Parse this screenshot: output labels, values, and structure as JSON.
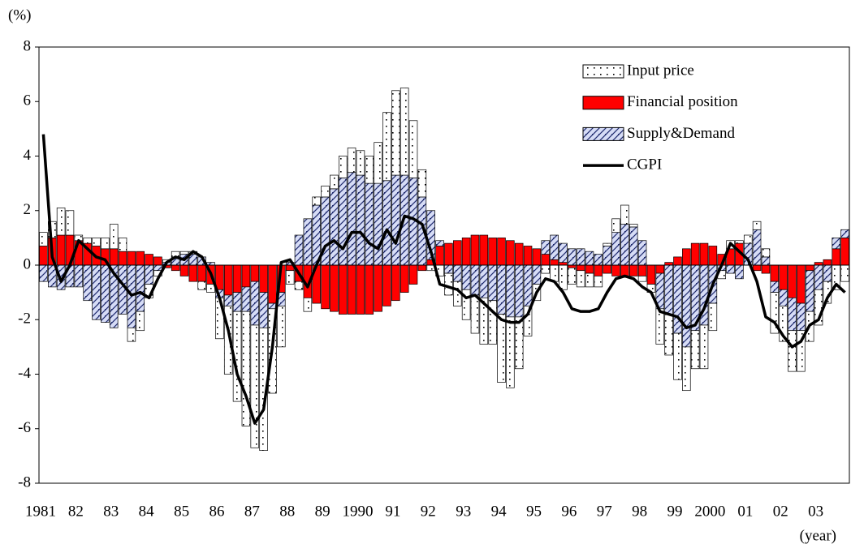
{
  "chart_data": {
    "type": "bar",
    "ylabel": "(%)",
    "xlabel": "(year)",
    "ylim": [
      -8,
      8
    ],
    "yticks": [
      -8,
      -6,
      -4,
      -2,
      0,
      2,
      4,
      6,
      8
    ],
    "legend": "upper right",
    "categories": [
      "1981",
      null,
      null,
      null,
      "82",
      null,
      null,
      null,
      "83",
      null,
      null,
      null,
      "84",
      null,
      null,
      null,
      "85",
      null,
      null,
      null,
      "86",
      null,
      null,
      null,
      "87",
      null,
      null,
      null,
      "88",
      null,
      null,
      null,
      "89",
      null,
      null,
      null,
      "1990",
      null,
      null,
      null,
      "91",
      null,
      null,
      null,
      "92",
      null,
      null,
      null,
      "93",
      null,
      null,
      null,
      "94",
      null,
      null,
      null,
      "95",
      null,
      null,
      null,
      "96",
      null,
      null,
      null,
      "97",
      null,
      null,
      null,
      "98",
      null,
      null,
      null,
      "99",
      null,
      null,
      null,
      "2000",
      null,
      null,
      null,
      "01",
      null,
      null,
      null,
      "02",
      null,
      null,
      null,
      "03",
      null,
      null,
      null
    ],
    "series": [
      {
        "name": "Input price",
        "color": "#ffffff",
        "type": "bar",
        "values": [
          0.5,
          0.6,
          1.0,
          0.9,
          0.2,
          0.2,
          0.3,
          0.4,
          0.9,
          0.5,
          -0.5,
          -0.7,
          -0.5,
          -0.2,
          0.1,
          0.2,
          0.1,
          0.1,
          -0.3,
          -0.3,
          -1.5,
          -2.5,
          -3.3,
          -4.2,
          -4.5,
          -4.5,
          -3.1,
          -1.5,
          -0.5,
          -0.3,
          -0.5,
          0.3,
          0.4,
          0.5,
          0.8,
          0.9,
          0.9,
          1.0,
          1.5,
          2.5,
          3.1,
          3.2,
          2.1,
          1.0,
          -0.2,
          -0.4,
          -0.8,
          -0.9,
          -1.1,
          -1.4,
          -1.7,
          -1.6,
          -2.5,
          -2.6,
          -1.9,
          -1.1,
          -0.6,
          -0.3,
          -0.6,
          -0.9,
          -0.6,
          -0.6,
          -0.5,
          -0.4,
          0.1,
          0.5,
          0.7,
          0.1,
          -0.2,
          -0.3,
          -1.3,
          -1.5,
          -1.7,
          -1.6,
          -1.4,
          -1.6,
          -1.0,
          -0.3,
          0.3,
          0.1,
          0.3,
          0.3,
          0.3,
          -1.5,
          -1.3,
          -1.5,
          -1.5,
          -1.1,
          -1.3,
          -0.8,
          -0.9,
          -0.6
        ]
      },
      {
        "name": "Financial position",
        "color": "#ff0000",
        "type": "bar",
        "values": [
          0.7,
          1.0,
          1.1,
          1.1,
          0.9,
          0.8,
          0.7,
          0.6,
          0.6,
          0.5,
          0.5,
          0.5,
          0.4,
          0.3,
          -0.1,
          -0.2,
          -0.4,
          -0.6,
          -0.6,
          -0.7,
          -0.9,
          -1.1,
          -1.0,
          -0.8,
          -0.6,
          -1.0,
          -1.4,
          -1.0,
          -0.2,
          -0.6,
          -1.2,
          -1.4,
          -1.6,
          -1.7,
          -1.8,
          -1.8,
          -1.8,
          -1.8,
          -1.7,
          -1.5,
          -1.3,
          -1.0,
          -0.7,
          -0.2,
          0.2,
          0.7,
          0.8,
          0.9,
          1.0,
          1.1,
          1.1,
          1.0,
          1.0,
          0.9,
          0.8,
          0.7,
          0.6,
          0.4,
          0.2,
          0.1,
          -0.1,
          -0.2,
          -0.3,
          -0.4,
          -0.3,
          -0.4,
          -0.4,
          -0.4,
          -0.4,
          -0.7,
          -0.3,
          0.1,
          0.3,
          0.6,
          0.8,
          0.8,
          0.7,
          0.4,
          0.6,
          0.8,
          0.0,
          -0.2,
          -0.3,
          -0.6,
          -0.9,
          -1.2,
          -1.4,
          -0.2,
          0.1,
          0.2,
          0.6,
          1.0
        ]
      },
      {
        "name": "Supply&Demand",
        "color": "#d6dcf6",
        "type": "bar",
        "values": [
          -0.6,
          -0.8,
          -0.9,
          -0.8,
          -0.8,
          -1.3,
          -2.0,
          -2.1,
          -2.3,
          -1.8,
          -2.3,
          -1.7,
          -0.7,
          -0.2,
          0.1,
          0.3,
          0.4,
          0.4,
          0.3,
          0.1,
          -0.3,
          -0.4,
          -0.7,
          -0.9,
          -1.6,
          -1.3,
          -0.2,
          -0.5,
          0.1,
          1.1,
          1.7,
          2.2,
          2.5,
          2.8,
          3.2,
          3.4,
          3.3,
          3.0,
          3.0,
          3.1,
          3.3,
          3.3,
          3.2,
          2.5,
          1.8,
          0.2,
          -0.3,
          -0.6,
          -0.9,
          -1.1,
          -1.2,
          -1.3,
          -1.8,
          -1.9,
          -1.9,
          -1.5,
          -0.7,
          0.5,
          0.9,
          0.7,
          0.6,
          0.6,
          0.5,
          0.4,
          0.7,
          1.2,
          1.5,
          1.4,
          0.9,
          0.0,
          -1.3,
          -1.8,
          -2.5,
          -3.0,
          -2.4,
          -2.2,
          -1.4,
          -0.2,
          -0.3,
          -0.5,
          0.8,
          1.3,
          0.3,
          -0.4,
          -0.6,
          -1.2,
          -1.0,
          -1.5,
          -0.9,
          -0.6,
          0.4,
          0.3
        ]
      },
      {
        "name": "CGPI",
        "color": "#000000",
        "type": "line",
        "values": [
          4.8,
          0.3,
          -0.6,
          0.0,
          0.9,
          0.6,
          0.3,
          0.2,
          -0.3,
          -0.7,
          -1.1,
          -1.0,
          -1.2,
          -0.5,
          0.1,
          0.3,
          0.2,
          0.5,
          0.3,
          -0.3,
          -1.2,
          -2.4,
          -4.0,
          -4.8,
          -5.8,
          -5.3,
          -3.0,
          0.1,
          0.2,
          -0.3,
          -0.8,
          0.0,
          0.7,
          0.9,
          0.6,
          1.2,
          1.2,
          0.8,
          0.6,
          1.3,
          0.8,
          1.8,
          1.7,
          1.5,
          0.5,
          -0.7,
          -0.8,
          -0.9,
          -1.2,
          -1.1,
          -1.4,
          -1.7,
          -2.0,
          -2.1,
          -2.1,
          -1.8,
          -1.0,
          -0.5,
          -0.6,
          -1.0,
          -1.6,
          -1.7,
          -1.7,
          -1.6,
          -1.0,
          -0.5,
          -0.4,
          -0.5,
          -0.8,
          -1.0,
          -1.7,
          -1.8,
          -1.9,
          -2.3,
          -2.2,
          -1.6,
          -0.7,
          0.0,
          0.8,
          0.5,
          0.2,
          -0.6,
          -1.9,
          -2.1,
          -2.6,
          -3.0,
          -2.8,
          -2.2,
          -2.0,
          -1.2,
          -0.7,
          -1.0
        ]
      }
    ]
  }
}
